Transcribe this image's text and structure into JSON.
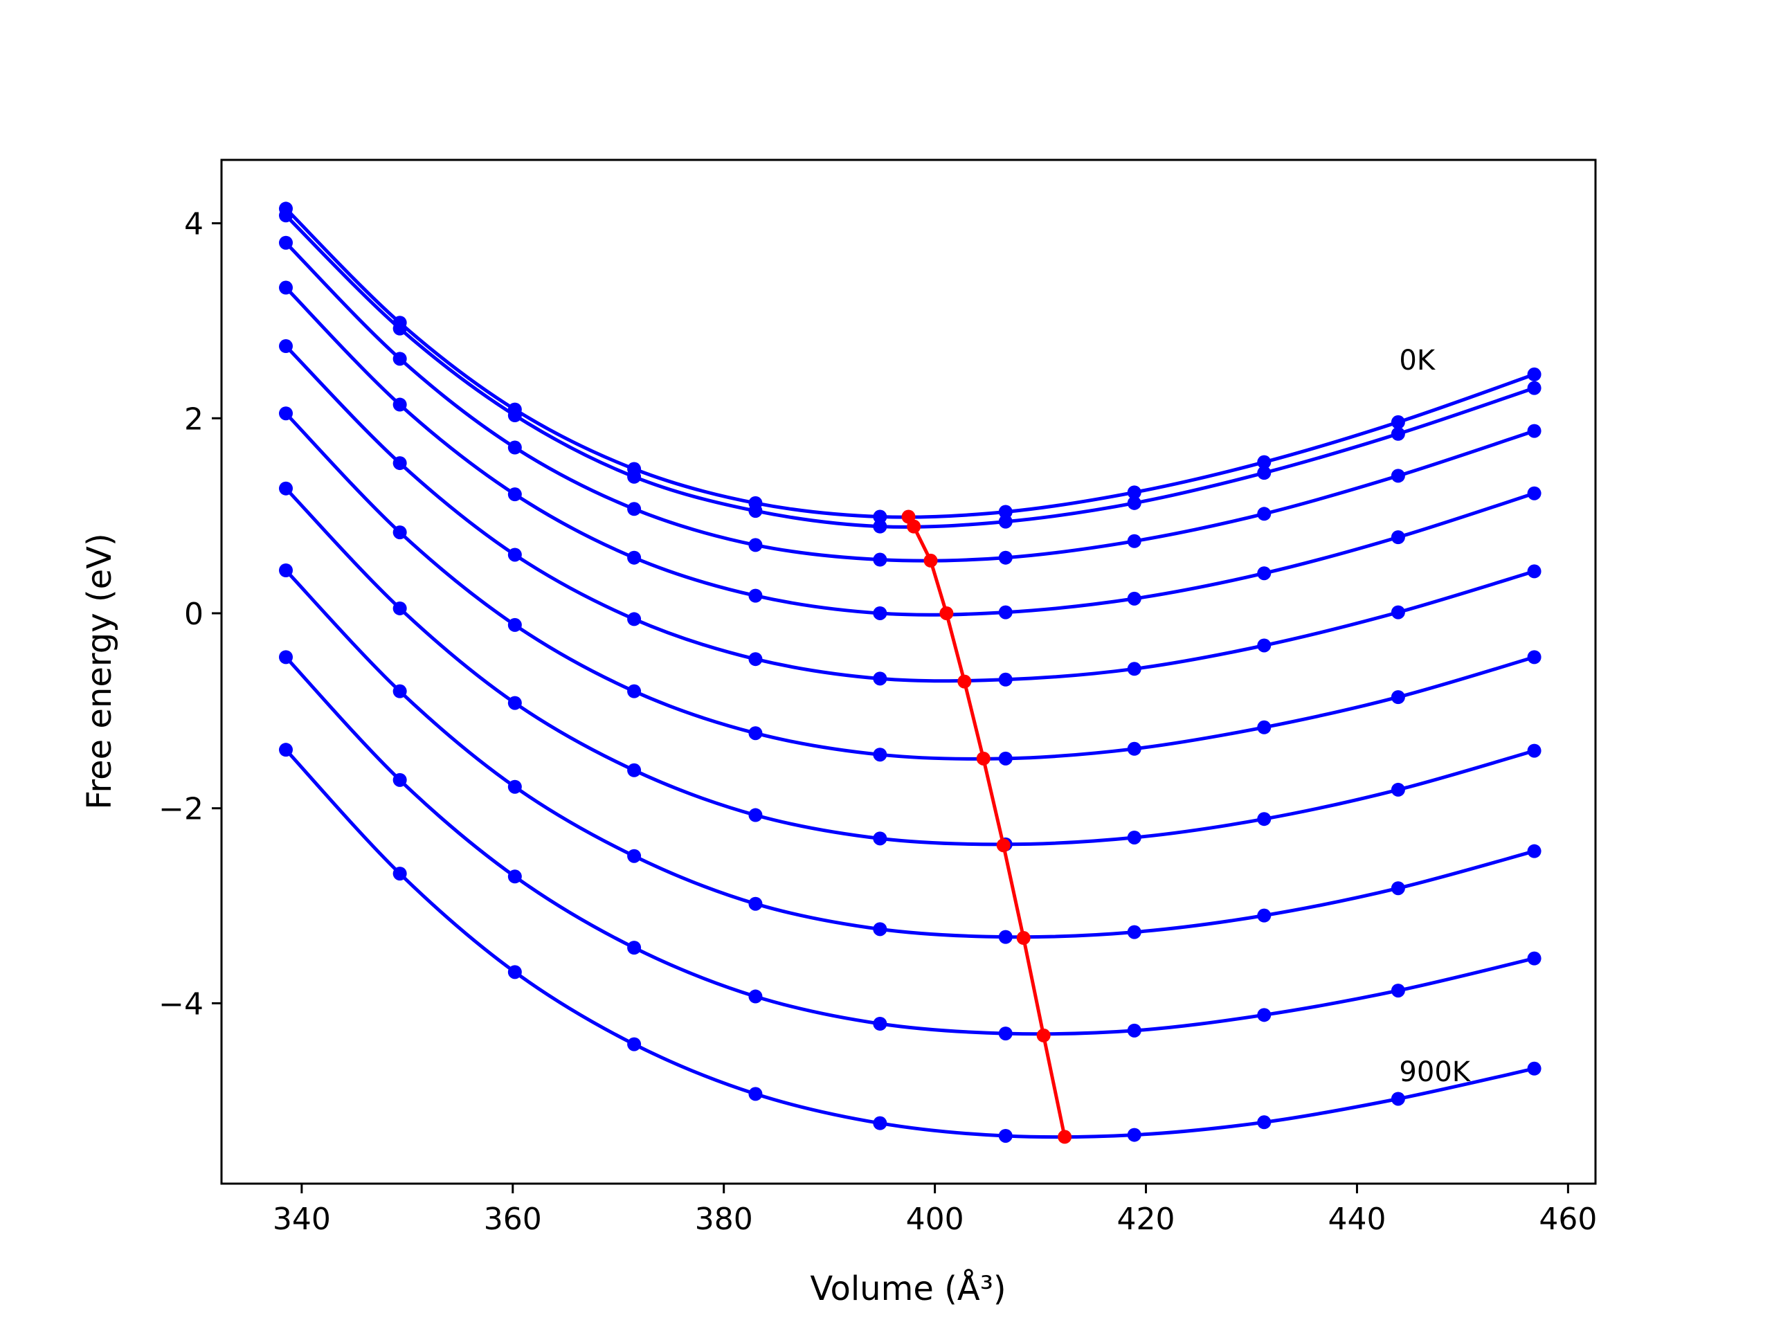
{
  "chart_data": {
    "type": "line",
    "title": "",
    "xlabel": "Volume (Å³)",
    "ylabel": "Free energy (eV)",
    "xlim": [
      332.4,
      462.6
    ],
    "ylim": [
      -5.85,
      4.65
    ],
    "xticks": [
      340,
      360,
      380,
      400,
      420,
      440,
      460
    ],
    "yticks": [
      -4,
      -2,
      0,
      2,
      4
    ],
    "xtick_labels": [
      "340",
      "360",
      "380",
      "400",
      "420",
      "440",
      "460"
    ],
    "ytick_labels": [
      "−4",
      "−2",
      "0",
      "2",
      "4"
    ],
    "grid": false,
    "legend": "none",
    "colors": {
      "curves": "#0000ff",
      "minimum_line": "#ff0000",
      "axes": "#000000"
    },
    "annotations": [
      {
        "text": "0K",
        "x": 444.0,
        "y": 2.5
      },
      {
        "text": "900K",
        "x": 444.0,
        "y": -4.8
      }
    ],
    "x": [
      338.5,
      349.3,
      360.2,
      371.5,
      383.0,
      394.8,
      406.7,
      418.9,
      431.2,
      443.9,
      456.8
    ],
    "series": [
      {
        "values": [
          4.15,
          2.98,
          2.09,
          1.48,
          1.13,
          0.99,
          1.04,
          1.24,
          1.55,
          1.96,
          2.45
        ]
      },
      {
        "values": [
          4.08,
          2.92,
          2.03,
          1.4,
          1.05,
          0.89,
          0.94,
          1.13,
          1.44,
          1.84,
          2.31
        ]
      },
      {
        "values": [
          3.8,
          2.61,
          1.7,
          1.07,
          0.7,
          0.55,
          0.57,
          0.74,
          1.02,
          1.41,
          1.87
        ]
      },
      {
        "values": [
          3.34,
          2.14,
          1.22,
          0.57,
          0.18,
          0.0,
          0.01,
          0.15,
          0.41,
          0.78,
          1.23
        ]
      },
      {
        "values": [
          2.74,
          1.54,
          0.6,
          -0.06,
          -0.47,
          -0.67,
          -0.68,
          -0.57,
          -0.33,
          0.01,
          0.43
        ]
      },
      {
        "values": [
          2.05,
          0.83,
          -0.12,
          -0.8,
          -1.23,
          -1.45,
          -1.49,
          -1.39,
          -1.17,
          -0.86,
          -0.45
        ]
      },
      {
        "values": [
          1.28,
          0.05,
          -0.92,
          -1.61,
          -2.07,
          -2.31,
          -2.37,
          -2.3,
          -2.11,
          -1.81,
          -1.41
        ]
      },
      {
        "values": [
          0.44,
          -0.8,
          -1.78,
          -2.49,
          -2.98,
          -3.24,
          -3.32,
          -3.27,
          -3.1,
          -2.82,
          -2.44
        ]
      },
      {
        "values": [
          -0.45,
          -1.71,
          -2.7,
          -3.43,
          -3.93,
          -4.21,
          -4.31,
          -4.28,
          -4.12,
          -3.87,
          -3.54
        ]
      },
      {
        "values": [
          -1.4,
          -2.67,
          -3.68,
          -4.42,
          -4.93,
          -5.23,
          -5.36,
          -5.35,
          -5.22,
          -4.98,
          -4.67
        ]
      }
    ],
    "minima": {
      "x": [
        397.5,
        398.0,
        399.6,
        401.1,
        402.8,
        404.6,
        406.5,
        408.4,
        410.3,
        412.3
      ],
      "y": [
        0.99,
        0.89,
        0.54,
        0.0,
        -0.7,
        -1.49,
        -2.38,
        -3.33,
        -4.33,
        -5.37
      ]
    }
  }
}
